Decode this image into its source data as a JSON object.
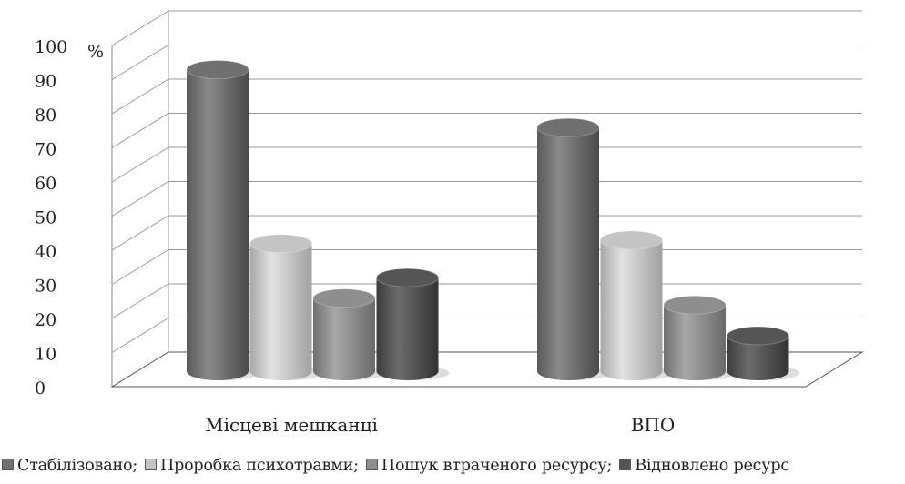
{
  "chart_data": {
    "type": "bar",
    "style": "3d-cylinder",
    "unit_label": "%",
    "categories": [
      "Місцеві мешканці",
      "ВПО"
    ],
    "series": [
      {
        "name": "Стабілізовано",
        "values": [
          90,
          73
        ],
        "color": "#707070"
      },
      {
        "name": "Проробка психотравми",
        "values": [
          39,
          40
        ],
        "color": "#c4c4c4"
      },
      {
        "name": "Пошук втраченого ресурсу",
        "values": [
          23,
          21
        ],
        "color": "#8e8e8e"
      },
      {
        "name": "Відновлено ресурс",
        "values": [
          29,
          12
        ],
        "color": "#555555"
      }
    ],
    "ylim": [
      0,
      100
    ],
    "yticks": [
      0,
      10,
      20,
      30,
      40,
      50,
      60,
      70,
      80,
      90,
      100
    ],
    "grid": true,
    "legend_position": "bottom"
  }
}
